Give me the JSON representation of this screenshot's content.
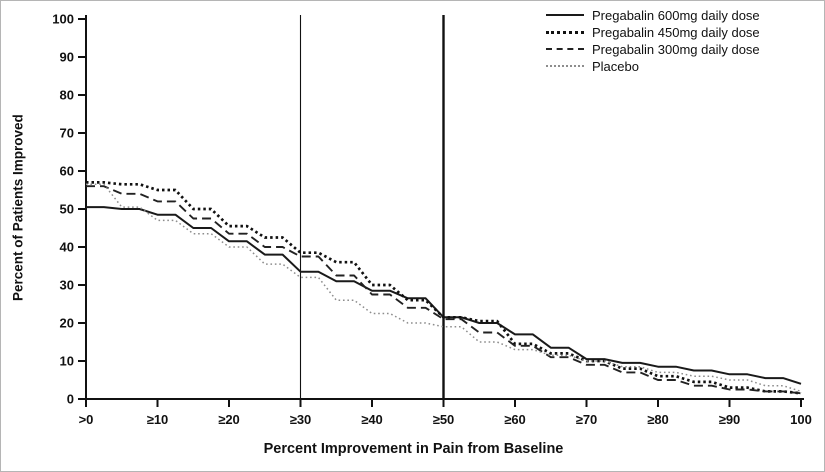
{
  "chart_data": {
    "type": "line",
    "title": "",
    "xlabel": "Percent Improvement in Pain from Baseline",
    "ylabel": "Percent of Patients Improved",
    "xlim": [
      0,
      100
    ],
    "ylim": [
      0,
      100
    ],
    "grid": false,
    "legend_position": "top-right",
    "x_tick_values": [
      0,
      10,
      20,
      30,
      40,
      50,
      60,
      70,
      80,
      90,
      100
    ],
    "x_tick_labels": [
      ">0",
      "≥10",
      "≥20",
      "≥30",
      "≥40",
      "≥50",
      "≥60",
      "≥70",
      "≥80",
      "≥90",
      "100"
    ],
    "y_tick_values": [
      0,
      10,
      20,
      30,
      40,
      50,
      60,
      70,
      80,
      90,
      100
    ],
    "y_tick_labels": [
      "0",
      "10",
      "20",
      "30",
      "40",
      "50",
      "60",
      "70",
      "80",
      "90",
      "100"
    ],
    "reference_lines": [
      {
        "x": 30,
        "weight": "thin"
      },
      {
        "x": 50,
        "weight": "thick"
      }
    ],
    "x": [
      0,
      5,
      10,
      15,
      20,
      25,
      30,
      35,
      40,
      45,
      50,
      55,
      60,
      65,
      70,
      75,
      80,
      85,
      90,
      95,
      100
    ],
    "series": [
      {
        "name": "Pregabalin 600mg daily dose",
        "style": "solid",
        "color": "#1a1a1a",
        "values": [
          50.5,
          50,
          48.5,
          45,
          41.5,
          38,
          33.5,
          31,
          28.5,
          26.5,
          21.5,
          20,
          17,
          13.5,
          10.5,
          9.5,
          8.5,
          7.5,
          6.5,
          5.5,
          4
        ]
      },
      {
        "name": "Pregabalin 450mg daily dose",
        "style": "dotted-bold",
        "color": "#111111",
        "values": [
          57,
          56.5,
          55,
          50,
          45.5,
          42.5,
          38.5,
          36,
          30,
          26,
          21.5,
          20.5,
          14.5,
          12,
          10,
          8,
          6,
          4.5,
          3,
          2,
          1.5
        ]
      },
      {
        "name": "Pregabalin 300mg daily dose",
        "style": "dashed",
        "color": "#222222",
        "values": [
          56,
          54,
          52,
          47.5,
          43.5,
          40,
          37.5,
          32.5,
          27.5,
          24,
          21,
          17.5,
          14,
          11,
          9,
          7,
          5,
          3.5,
          2.5,
          2,
          1.5
        ]
      },
      {
        "name": "Placebo",
        "style": "dotted-fine",
        "color": "#8d8d8d",
        "values": [
          56.5,
          50.5,
          47,
          43.5,
          40,
          35.5,
          32,
          26,
          22.5,
          20,
          19,
          15,
          13,
          11.5,
          10,
          8.5,
          7,
          6,
          5,
          3.5,
          2
        ]
      }
    ]
  }
}
